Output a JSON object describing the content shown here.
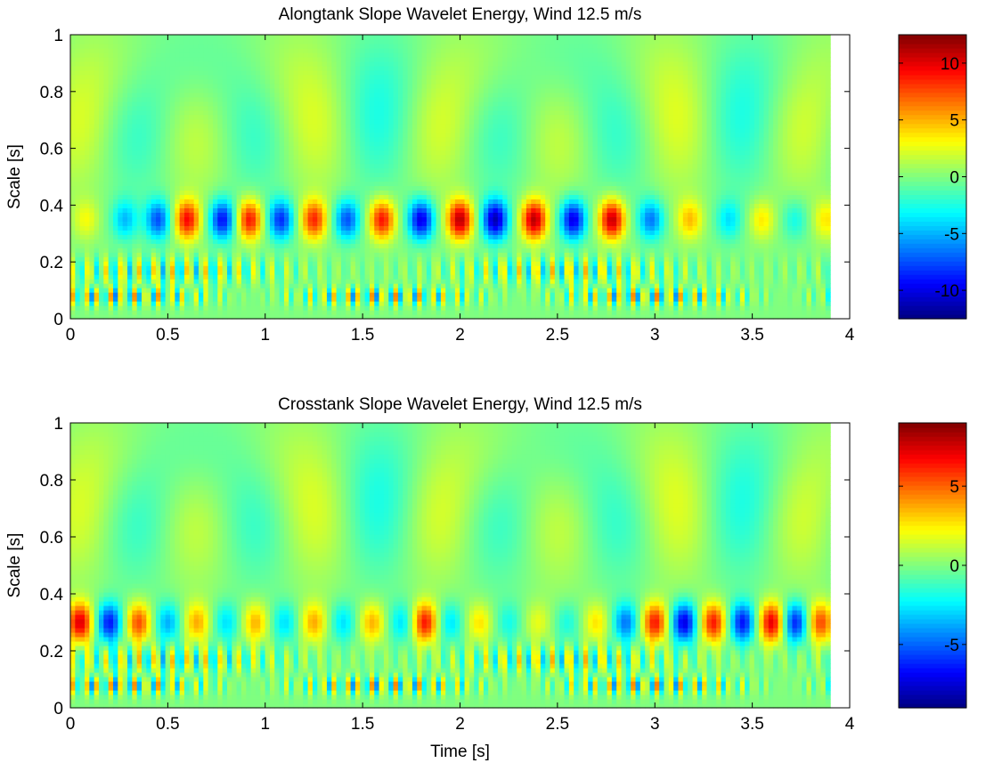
{
  "chart_data": [
    {
      "type": "heatmap",
      "title": "Alongtank Slope Wavelet Energy, Wind 12.5 m/s",
      "xlabel": "",
      "ylabel": "Scale [s]",
      "xlim": [
        0,
        4
      ],
      "ylim": [
        0,
        1
      ],
      "data_xmax": 3.9,
      "xticks": [
        "0",
        "0.5",
        "1",
        "1.5",
        "2",
        "2.5",
        "3",
        "3.5",
        "4"
      ],
      "yticks": [
        "0",
        "0.2",
        "0.4",
        "0.6",
        "0.8",
        "1"
      ],
      "colormap": "jet",
      "clim": [
        -12.5,
        12.5
      ],
      "colorbar_ticks": [
        "10",
        "5",
        "0",
        "-5",
        "-10"
      ],
      "dominant_band": {
        "scale": 0.35,
        "centers_s": [
          0.08,
          0.28,
          0.45,
          0.6,
          0.78,
          0.92,
          1.08,
          1.25,
          1.42,
          1.6,
          1.8,
          2.0,
          2.18,
          2.38,
          2.58,
          2.78,
          2.98,
          3.18,
          3.38,
          3.55,
          3.72,
          3.88
        ],
        "signs": [
          1,
          -1,
          -1,
          1,
          -1,
          1,
          -1,
          1,
          -1,
          1,
          -1,
          1,
          -1,
          1,
          -1,
          1,
          -1,
          1,
          -1,
          1,
          -1,
          1
        ],
        "amplitudes": [
          3,
          5,
          8,
          10,
          10,
          10,
          9,
          9,
          8,
          10,
          11,
          12,
          12,
          12,
          11,
          12,
          7,
          5,
          4,
          4,
          3,
          4
        ]
      }
    },
    {
      "type": "heatmap",
      "title": "Crosstank Slope Wavelet Energy, Wind 12.5 m/s",
      "xlabel": "Time [s]",
      "ylabel": "Scale [s]",
      "xlim": [
        0,
        4
      ],
      "ylim": [
        0,
        1
      ],
      "data_xmax": 3.9,
      "xticks": [
        "0",
        "0.5",
        "1",
        "1.5",
        "2",
        "2.5",
        "3",
        "3.5",
        "4"
      ],
      "yticks": [
        "0",
        "0.2",
        "0.4",
        "0.6",
        "0.8",
        "1"
      ],
      "colormap": "jet",
      "clim": [
        -9,
        9
      ],
      "colorbar_ticks": [
        "5",
        "0",
        "-5"
      ],
      "dominant_band": {
        "scale": 0.3,
        "centers_s": [
          0.05,
          0.2,
          0.35,
          0.5,
          0.65,
          0.8,
          0.95,
          1.1,
          1.25,
          1.4,
          1.55,
          1.7,
          1.82,
          1.95,
          2.1,
          2.25,
          2.4,
          2.55,
          2.7,
          2.85,
          3.0,
          3.15,
          3.3,
          3.45,
          3.6,
          3.72,
          3.85
        ],
        "signs": [
          1,
          -1,
          1,
          -1,
          1,
          -1,
          1,
          -1,
          1,
          -1,
          1,
          -1,
          1,
          -1,
          1,
          -1,
          1,
          -1,
          1,
          -1,
          1,
          -1,
          1,
          -1,
          1,
          -1,
          1
        ],
        "amplitudes": [
          8,
          7,
          6,
          4,
          4,
          3,
          4,
          3,
          4,
          3,
          4,
          3,
          7,
          3,
          3,
          2,
          2,
          2,
          3,
          5,
          7,
          8,
          7,
          7,
          8,
          7,
          6
        ]
      }
    }
  ]
}
